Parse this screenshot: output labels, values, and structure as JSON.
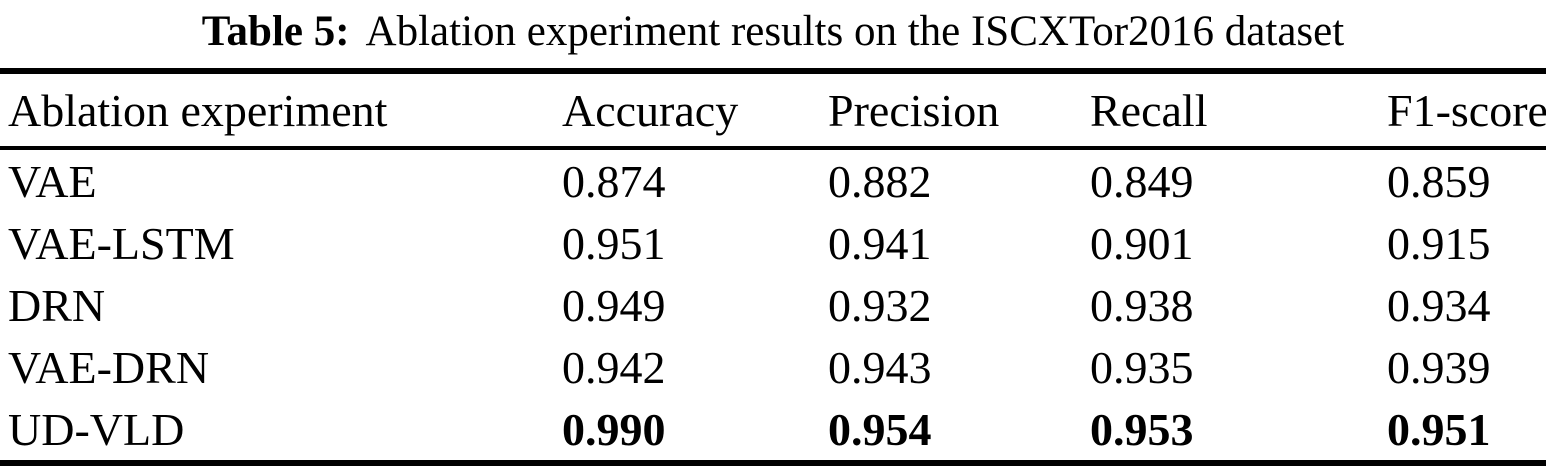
{
  "caption": {
    "label": "Table 5:",
    "text": "Ablation experiment results on the ISCXTor2016 dataset"
  },
  "table": {
    "headers": [
      "Ablation experiment",
      "Accuracy",
      "Precision",
      "Recall",
      "F1-score"
    ],
    "rows": [
      {
        "name": "VAE",
        "values": [
          "0.874",
          "0.882",
          "0.849",
          "0.859"
        ],
        "bold": false
      },
      {
        "name": "VAE-LSTM",
        "values": [
          "0.951",
          "0.941",
          "0.901",
          "0.915"
        ],
        "bold": false
      },
      {
        "name": "DRN",
        "values": [
          "0.949",
          "0.932",
          "0.938",
          "0.934"
        ],
        "bold": false
      },
      {
        "name": "VAE-DRN",
        "values": [
          "0.942",
          "0.943",
          "0.935",
          "0.939"
        ],
        "bold": false
      },
      {
        "name": "UD-VLD",
        "values": [
          "0.990",
          "0.954",
          "0.953",
          "0.951"
        ],
        "bold": true
      }
    ]
  }
}
